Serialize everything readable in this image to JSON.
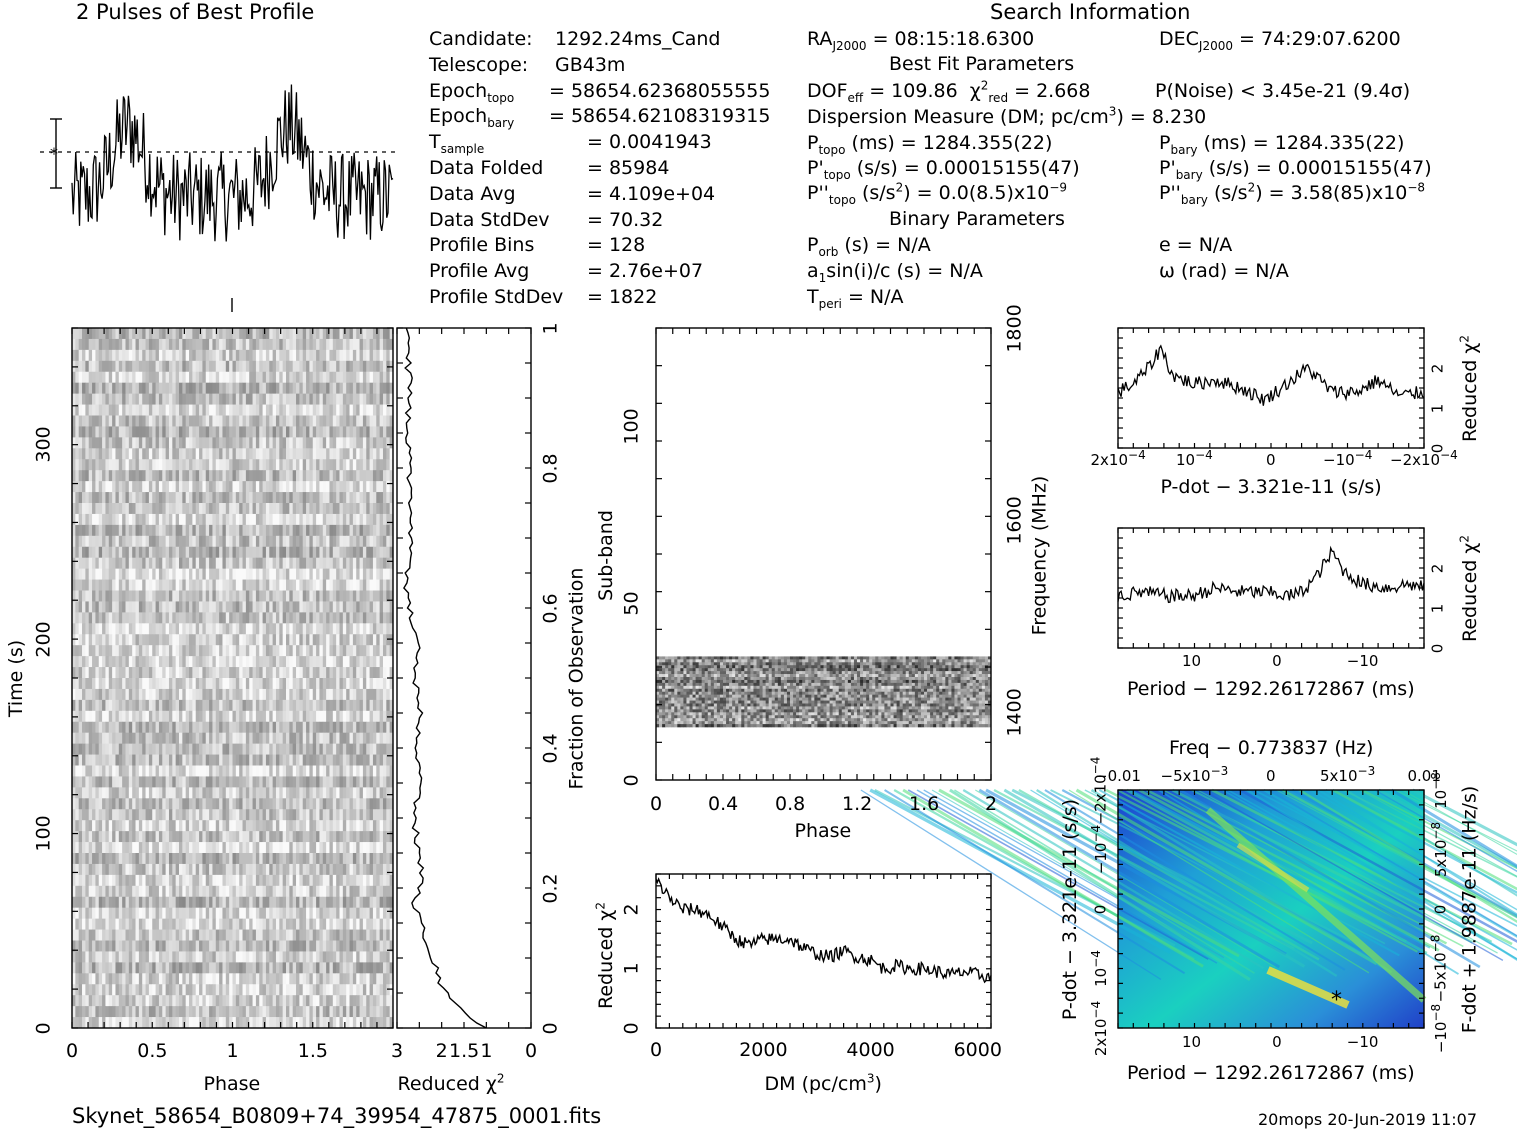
{
  "header": {
    "profile_title": "2 Pulses of Best Profile",
    "search_title": "Search Information",
    "best_fit_title": "Best Fit Parameters",
    "binary_title": "Binary Parameters"
  },
  "info_left": [
    {
      "label": "Candidate:",
      "value": "1292.24ms_Cand"
    },
    {
      "label": "Telescope:",
      "value": "GB43m"
    },
    {
      "label": "Epoch",
      "sub": "topo",
      "value": "= 58654.62368055555"
    },
    {
      "label": "Epoch",
      "sub": "bary",
      "value": "= 58654.62108319315"
    },
    {
      "label": "T",
      "sub": "sample",
      "value": "= 0.0041943"
    },
    {
      "label": "Data Folded",
      "value": "= 85984"
    },
    {
      "label": "Data Avg",
      "value": "= 4.109e+04"
    },
    {
      "label": "Data StdDev",
      "value": "= 70.32"
    },
    {
      "label": "Profile Bins",
      "value": "= 128"
    },
    {
      "label": "Profile Avg",
      "value": "= 2.76e+07"
    },
    {
      "label": "Profile StdDev",
      "value": "= 1822"
    }
  ],
  "info_mid": {
    "ra": "RA",
    "ra_sub": "J2000",
    "ra_value": "= 08:15:18.6300",
    "dof": "DOF",
    "dof_sub": "eff",
    "dof_value": "= 109.86",
    "chi": "χ",
    "chi_sub": "red",
    "chi_value": "= 2.668",
    "dm": "Dispersion Measure (DM; pc/cm",
    "dm_value": ") = 8.230",
    "ptopo": "P",
    "ptopo_sub": "topo",
    "ptopo_value": "(ms) =  1284.355(22)",
    "pdtopo": "P'",
    "pdtopo_sub": "topo",
    "pdtopo_value": "(s/s) =  0.00015155(47)",
    "pddtopo": "P''",
    "pddtopo_sub": "topo",
    "pddtopo_value": "(s/s",
    "pddtopo_tail": ") = 0.0(8.5)x10",
    "porb": "P",
    "porb_sub": "orb",
    "porb_value": "(s) = N/A",
    "a1": "a",
    "a1_sub": "1",
    "a1_value": "sin(i)/c (s) = N/A",
    "tperi": "T",
    "tperi_sub": "peri",
    "tperi_value": "= N/A"
  },
  "info_right": {
    "dec": "DEC",
    "dec_sub": "J2000",
    "dec_value": "= 74:29:07.6200",
    "pnoise": "P(Noise) < 3.45e-21  (9.4σ)",
    "pbary": "P",
    "pbary_sub": "bary",
    "pbary_value": "(ms) =  1284.335(22)",
    "pdbary": "P'",
    "pdbary_sub": "bary",
    "pdbary_value": "(s/s) =  0.00015155(47)",
    "pddbary": "P''",
    "pddbary_sub": "bary",
    "pddbary_value": "(s/s",
    "pddbary_tail": ") =  3.58(85)x10",
    "ecc": "e = N/A",
    "omega": "ω (rad) = N/A"
  },
  "exponents": {
    "cubed": "3",
    "squared": "2",
    "m9": "−9",
    "m8": "−8"
  },
  "footer": {
    "filename": "Skynet_58654_B0809+74_39954_47875_0001.fits",
    "stamp": "20mops 20-Jun-2019 11:07"
  },
  "chart_data": [
    {
      "name": "profile",
      "type": "line",
      "title": "2 Pulses of Best Profile",
      "x_range": [
        0,
        2
      ],
      "note": "noisy folded profile shown twice over phase 0-2"
    },
    {
      "name": "time_phase",
      "type": "heatmap",
      "xlabel": "Phase",
      "ylabel": "Time (s)",
      "x_ticks": [
        "0",
        "0.5",
        "1",
        "1.5"
      ],
      "y_ticks": [
        "0",
        "100",
        "200",
        "300"
      ],
      "xlim": [
        0,
        2
      ],
      "ylim": [
        0,
        360
      ],
      "colormap": "grayscale"
    },
    {
      "name": "time_chi2",
      "type": "line",
      "xlabel": "Reduced χ",
      "x_sup": "2",
      "x_ticks": [
        "3",
        "2",
        "1.5",
        "1",
        "0"
      ],
      "y2label": "Fraction of Observation",
      "y2_ticks": [
        "0",
        "0.2",
        "0.4",
        "0.6",
        "0.8",
        "1"
      ],
      "y_frac": [
        0.0,
        0.01,
        0.02,
        0.03,
        0.04,
        0.06,
        0.08,
        0.1,
        0.12,
        0.15,
        0.18,
        0.22,
        0.26,
        0.3,
        0.35,
        0.4,
        0.45,
        0.5,
        0.55,
        0.6,
        0.65,
        0.7,
        0.75,
        0.8,
        0.85,
        0.9,
        0.95,
        1.0
      ],
      "chi2": [
        1.0,
        1.3,
        1.45,
        1.6,
        1.75,
        2.0,
        2.1,
        2.2,
        2.35,
        2.45,
        2.6,
        2.45,
        2.55,
        2.6,
        2.5,
        2.6,
        2.45,
        2.6,
        2.55,
        2.75,
        2.8,
        2.7,
        2.75,
        2.7,
        2.8,
        2.7,
        2.75,
        2.8
      ]
    },
    {
      "name": "subband",
      "type": "heatmap",
      "xlabel": "Phase",
      "ylabel": "Sub-band",
      "y2label": "Frequency (MHz)",
      "x_ticks": [
        "0",
        "0.4",
        "0.8",
        "1.2",
        "1.6",
        "2"
      ],
      "y_ticks": [
        "0",
        "50",
        "100"
      ],
      "y2_ticks": [
        "1400",
        "1600",
        "1800"
      ],
      "xlim": [
        0,
        2
      ],
      "ylim": [
        0,
        128
      ],
      "band": [
        15,
        35
      ]
    },
    {
      "name": "dm_chi2",
      "type": "line",
      "xlabel": "DM (pc/cm",
      "x_sup": "3",
      "ylabel": "Reduced χ",
      "y_sup": "2",
      "x_ticks": [
        "0",
        "2000",
        "4000",
        "6000"
      ],
      "y_ticks": [
        "0",
        "1",
        "2"
      ],
      "xlim": [
        0,
        6250
      ],
      "ylim": [
        0,
        2.6
      ],
      "x": [
        0,
        250,
        500,
        750,
        1000,
        1250,
        1500,
        1750,
        2000,
        2250,
        2500,
        2750,
        3000,
        3250,
        3500,
        3750,
        4000,
        4250,
        4500,
        4750,
        5000,
        5250,
        5500,
        5750,
        6000,
        6250
      ],
      "y": [
        2.5,
        2.2,
        2.0,
        2.0,
        1.9,
        1.7,
        1.5,
        1.4,
        1.5,
        1.5,
        1.5,
        1.35,
        1.25,
        1.2,
        1.3,
        1.2,
        1.15,
        1.0,
        1.05,
        1.0,
        1.0,
        0.95,
        0.9,
        0.95,
        0.9,
        0.85
      ]
    },
    {
      "name": "pdot_chi2",
      "type": "line",
      "xlabel": "P-dot − 3.321e-11 (s/s)",
      "ylabel": "Reduced χ",
      "y_sup": "2",
      "x_ticks": [
        "2x10",
        "10",
        "0",
        "−10",
        "−2x10"
      ],
      "x_tick_exp": "−4",
      "y_ticks": [
        "0",
        "1",
        "2"
      ],
      "ylim": [
        0,
        3
      ],
      "x_frac": [
        0.0,
        0.05,
        0.1,
        0.14,
        0.18,
        0.25,
        0.32,
        0.4,
        0.48,
        0.55,
        0.62,
        0.7,
        0.78,
        0.85,
        0.92,
        1.0
      ],
      "y": [
        1.4,
        1.6,
        2.0,
        2.5,
        1.8,
        1.6,
        1.7,
        1.5,
        1.2,
        1.6,
        2.0,
        1.4,
        1.4,
        1.7,
        1.3,
        1.4
      ]
    },
    {
      "name": "period_chi2",
      "type": "line",
      "xlabel": "Period − 1292.26172867 (ms)",
      "ylabel": "Reduced χ",
      "y_sup": "2",
      "x_ticks": [
        "10",
        "0",
        "−10"
      ],
      "y_ticks": [
        "0",
        "1",
        "2"
      ],
      "ylim": [
        0,
        3
      ],
      "x_frac": [
        0.0,
        0.08,
        0.16,
        0.24,
        0.32,
        0.4,
        0.48,
        0.56,
        0.6,
        0.65,
        0.7,
        0.74,
        0.8,
        0.88,
        0.95,
        1.0
      ],
      "y": [
        1.3,
        1.4,
        1.3,
        1.3,
        1.5,
        1.4,
        1.4,
        1.3,
        1.4,
        1.8,
        2.4,
        1.9,
        1.6,
        1.5,
        1.6,
        1.5
      ]
    },
    {
      "name": "ppdot_plane",
      "type": "heatmap",
      "title": "Freq − 0.773837 (Hz)",
      "xlabel": "Period − 1292.26172867 (ms)",
      "ylabel": "P-dot − 3.321e-11 (s/s)",
      "y2label": "F-dot + 1.9887e-11 (Hz/s)",
      "x_ticks": [
        "10",
        "0",
        "−10"
      ],
      "top_ticks": [
        "−0.01",
        "−5x10",
        "0",
        "5x10",
        "0.01"
      ],
      "top_tick_exp": "−3",
      "y_ticks": [
        "2x10",
        "10",
        "0",
        "−10",
        "−2x10"
      ],
      "y_tick_exp": "−4",
      "y2_ticks": [
        "−10",
        "−5x10",
        "0",
        "5x10",
        "10"
      ],
      "y2_tick_exp": "−8",
      "colormap": "blue-green-yellow",
      "peak_marker": "*"
    }
  ]
}
